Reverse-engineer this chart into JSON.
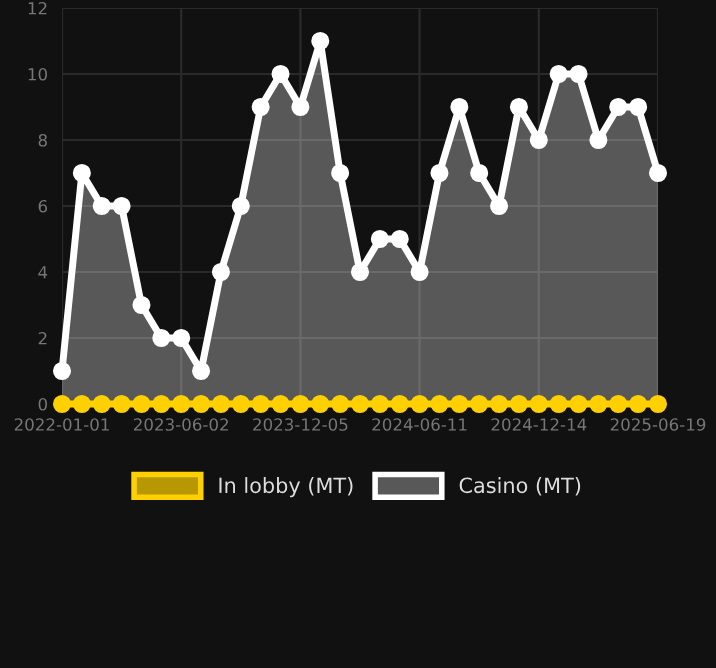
{
  "chart_data": {
    "type": "area",
    "categories": [
      "2022-01-01",
      null,
      null,
      null,
      null,
      null,
      "2023-06-02",
      null,
      null,
      null,
      null,
      null,
      "2023-12-05",
      null,
      null,
      null,
      null,
      null,
      "2024-06-11",
      null,
      null,
      null,
      null,
      null,
      "2024-12-14",
      null,
      null,
      null,
      null,
      null,
      "2025-06-19"
    ],
    "series": [
      {
        "name": "In lobby (MT)",
        "type": "line",
        "color": "#ffd000",
        "values": [
          0,
          0,
          0,
          0,
          0,
          0,
          0,
          0,
          0,
          0,
          0,
          0,
          0,
          0,
          0,
          0,
          0,
          0,
          0,
          0,
          0,
          0,
          0,
          0,
          0,
          0,
          0,
          0,
          0,
          0,
          0
        ]
      },
      {
        "name": "Casino (MT)",
        "color": "#ffffff",
        "values": [
          1,
          7,
          6,
          6,
          3,
          2,
          2,
          1,
          4,
          6,
          9,
          10,
          9,
          11,
          7,
          4,
          5,
          5,
          4,
          7,
          9,
          7,
          6,
          9,
          8,
          10,
          10,
          8,
          9,
          9,
          7
        ]
      }
    ],
    "ylim": [
      0,
      12
    ],
    "yticks": [
      0,
      2,
      4,
      6,
      8,
      10,
      12
    ],
    "grid": true,
    "legend": "bottom",
    "marker": "circle",
    "line_style": "solid"
  }
}
